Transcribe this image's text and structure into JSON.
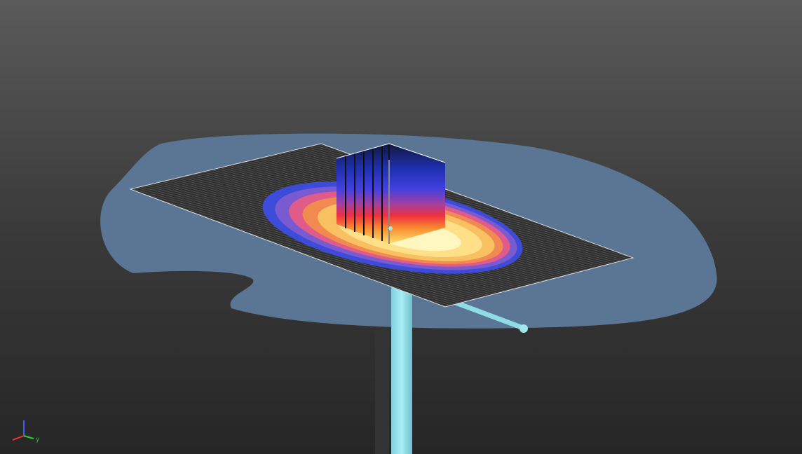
{
  "viewport": {
    "axis_label": "y"
  }
}
